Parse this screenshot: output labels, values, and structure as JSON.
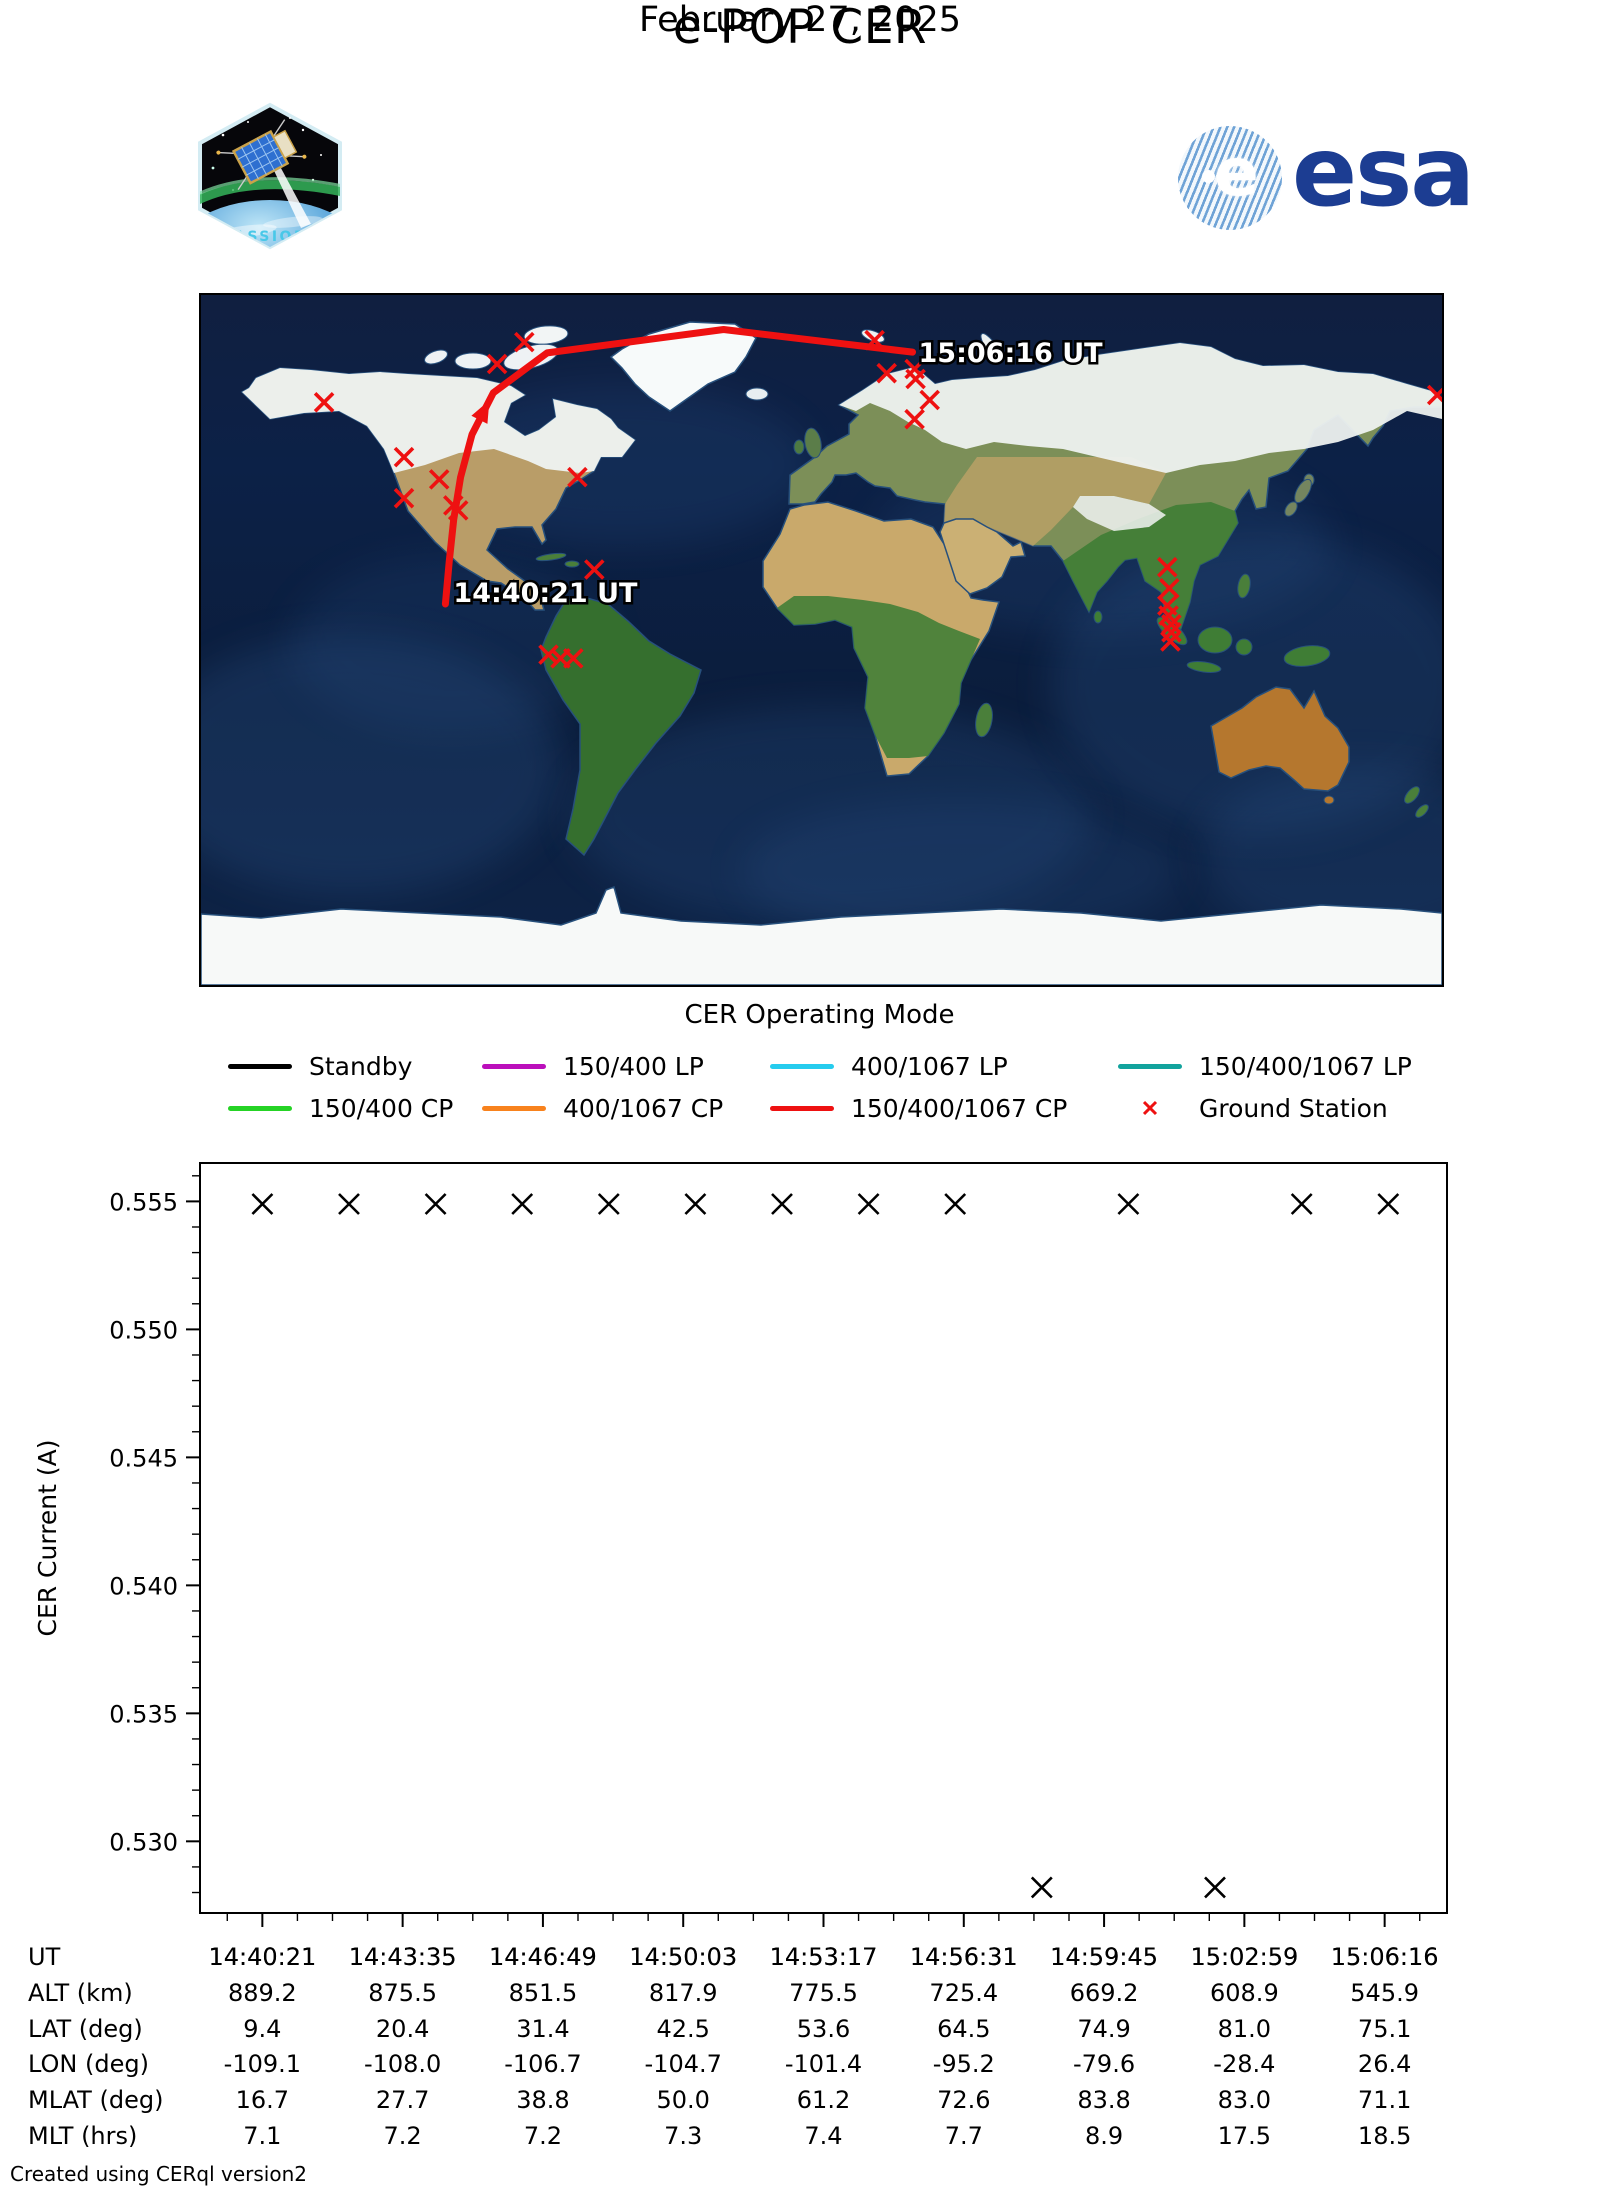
{
  "header": {
    "title": "e-POP CER",
    "date": "February 27, 2025",
    "patch_label": "CASSIOPE",
    "esa_wordmark": "esa"
  },
  "map": {
    "start_label": "14:40:21 UT",
    "end_label": "15:06:16 UT",
    "track_color": "#ee1111",
    "station_color": "#ee1111",
    "track_lonlat": [
      [
        -109.1,
        9.4
      ],
      [
        -108.0,
        20.4
      ],
      [
        -106.7,
        31.4
      ],
      [
        -104.7,
        42.5
      ],
      [
        -101.4,
        53.6
      ],
      [
        -95.2,
        64.5
      ],
      [
        -79.6,
        74.9
      ],
      [
        -28.4,
        81.0
      ],
      [
        26.4,
        75.1
      ]
    ],
    "ground_stations_lonlat": [
      [
        -144.3,
        62.0
      ],
      [
        -86.2,
        77.7
      ],
      [
        -94.1,
        72.0
      ],
      [
        -121.1,
        47.7
      ],
      [
        -110.9,
        41.9
      ],
      [
        -121.1,
        37.0
      ],
      [
        -106.8,
        35.1
      ],
      [
        -105.4,
        33.8
      ],
      [
        -70.8,
        42.5
      ],
      [
        -65.9,
        18.4
      ],
      [
        -79.2,
        -3.8
      ],
      [
        -75.7,
        -4.8
      ],
      [
        -72.0,
        -4.8
      ],
      [
        15.4,
        78.2
      ],
      [
        18.9,
        69.6
      ],
      [
        27.0,
        70.7
      ],
      [
        27.3,
        68.1
      ],
      [
        31.4,
        62.6
      ],
      [
        27.0,
        57.6
      ],
      [
        100.3,
        19.0
      ],
      [
        100.9,
        13.5
      ],
      [
        100.3,
        9.0
      ],
      [
        100.7,
        6.4
      ],
      [
        101.5,
        4.1
      ],
      [
        101.5,
        2.0
      ],
      [
        101.2,
        -0.4
      ],
      [
        178.6,
        63.9
      ]
    ]
  },
  "legend": {
    "title": "CER Operating Mode",
    "items": [
      {
        "label": "Standby",
        "color": "#000000",
        "type": "line"
      },
      {
        "label": "150/400 LP",
        "color": "#bb0fbb",
        "type": "line"
      },
      {
        "label": "400/1067 LP",
        "color": "#26ccee",
        "type": "line"
      },
      {
        "label": "150/400/1067 LP",
        "color": "#12a39d",
        "type": "line"
      },
      {
        "label": "150/400 CP",
        "color": "#25d325",
        "type": "line"
      },
      {
        "label": "400/1067 CP",
        "color": "#f8821d",
        "type": "line"
      },
      {
        "label": "150/400/1067 CP",
        "color": "#ee1111",
        "type": "line"
      },
      {
        "label": "Ground Station",
        "color": "#ee1111",
        "type": "marker"
      }
    ]
  },
  "chart_data": {
    "type": "scatter",
    "title": "",
    "xlabel": "",
    "ylabel": "CER Current (A)",
    "marker": "x",
    "marker_color": "#000000",
    "ylim": [
      0.5272,
      0.5565
    ],
    "y_ticks": [
      "0.530",
      "0.535",
      "0.540",
      "0.545",
      "0.550",
      "0.555"
    ],
    "x_tick_labels": [
      "14:40:21",
      "14:43:35",
      "14:46:49",
      "14:50:03",
      "14:53:17",
      "14:56:31",
      "14:59:45",
      "15:02:59",
      "15:06:16"
    ],
    "points": [
      {
        "t": "14:40:21",
        "y": 0.5549
      },
      {
        "t": "14:42:21",
        "y": 0.5549
      },
      {
        "t": "14:44:21",
        "y": 0.5549
      },
      {
        "t": "14:46:21",
        "y": 0.5549
      },
      {
        "t": "14:48:21",
        "y": 0.5549
      },
      {
        "t": "14:50:21",
        "y": 0.5549
      },
      {
        "t": "14:52:21",
        "y": 0.5549
      },
      {
        "t": "14:54:21",
        "y": 0.5549
      },
      {
        "t": "14:56:21",
        "y": 0.5549
      },
      {
        "t": "14:58:21",
        "y": 0.5282
      },
      {
        "t": "15:00:21",
        "y": 0.5549
      },
      {
        "t": "15:02:21",
        "y": 0.5282
      },
      {
        "t": "15:04:21",
        "y": 0.5549
      },
      {
        "t": "15:06:21",
        "y": 0.5549
      }
    ]
  },
  "table": {
    "rows": [
      {
        "label": "UT",
        "values": [
          "14:40:21",
          "14:43:35",
          "14:46:49",
          "14:50:03",
          "14:53:17",
          "14:56:31",
          "14:59:45",
          "15:02:59",
          "15:06:16"
        ]
      },
      {
        "label": "ALT (km)",
        "values": [
          "889.2",
          "875.5",
          "851.5",
          "817.9",
          "775.5",
          "725.4",
          "669.2",
          "608.9",
          "545.9"
        ]
      },
      {
        "label": "LAT (deg)",
        "values": [
          "9.4",
          "20.4",
          "31.4",
          "42.5",
          "53.6",
          "64.5",
          "74.9",
          "81.0",
          "75.1"
        ]
      },
      {
        "label": "LON (deg)",
        "values": [
          "-109.1",
          "-108.0",
          "-106.7",
          "-104.7",
          "-101.4",
          "-95.2",
          "-79.6",
          "-28.4",
          "26.4"
        ]
      },
      {
        "label": "MLAT (deg)",
        "values": [
          "16.7",
          "27.7",
          "38.8",
          "50.0",
          "61.2",
          "72.6",
          "83.8",
          "83.0",
          "71.1"
        ]
      },
      {
        "label": "MLT (hrs)",
        "values": [
          "7.1",
          "7.2",
          "7.2",
          "7.3",
          "7.4",
          "7.7",
          "8.9",
          "17.5",
          "18.5"
        ]
      }
    ]
  },
  "footer": "Created using CERql version2"
}
